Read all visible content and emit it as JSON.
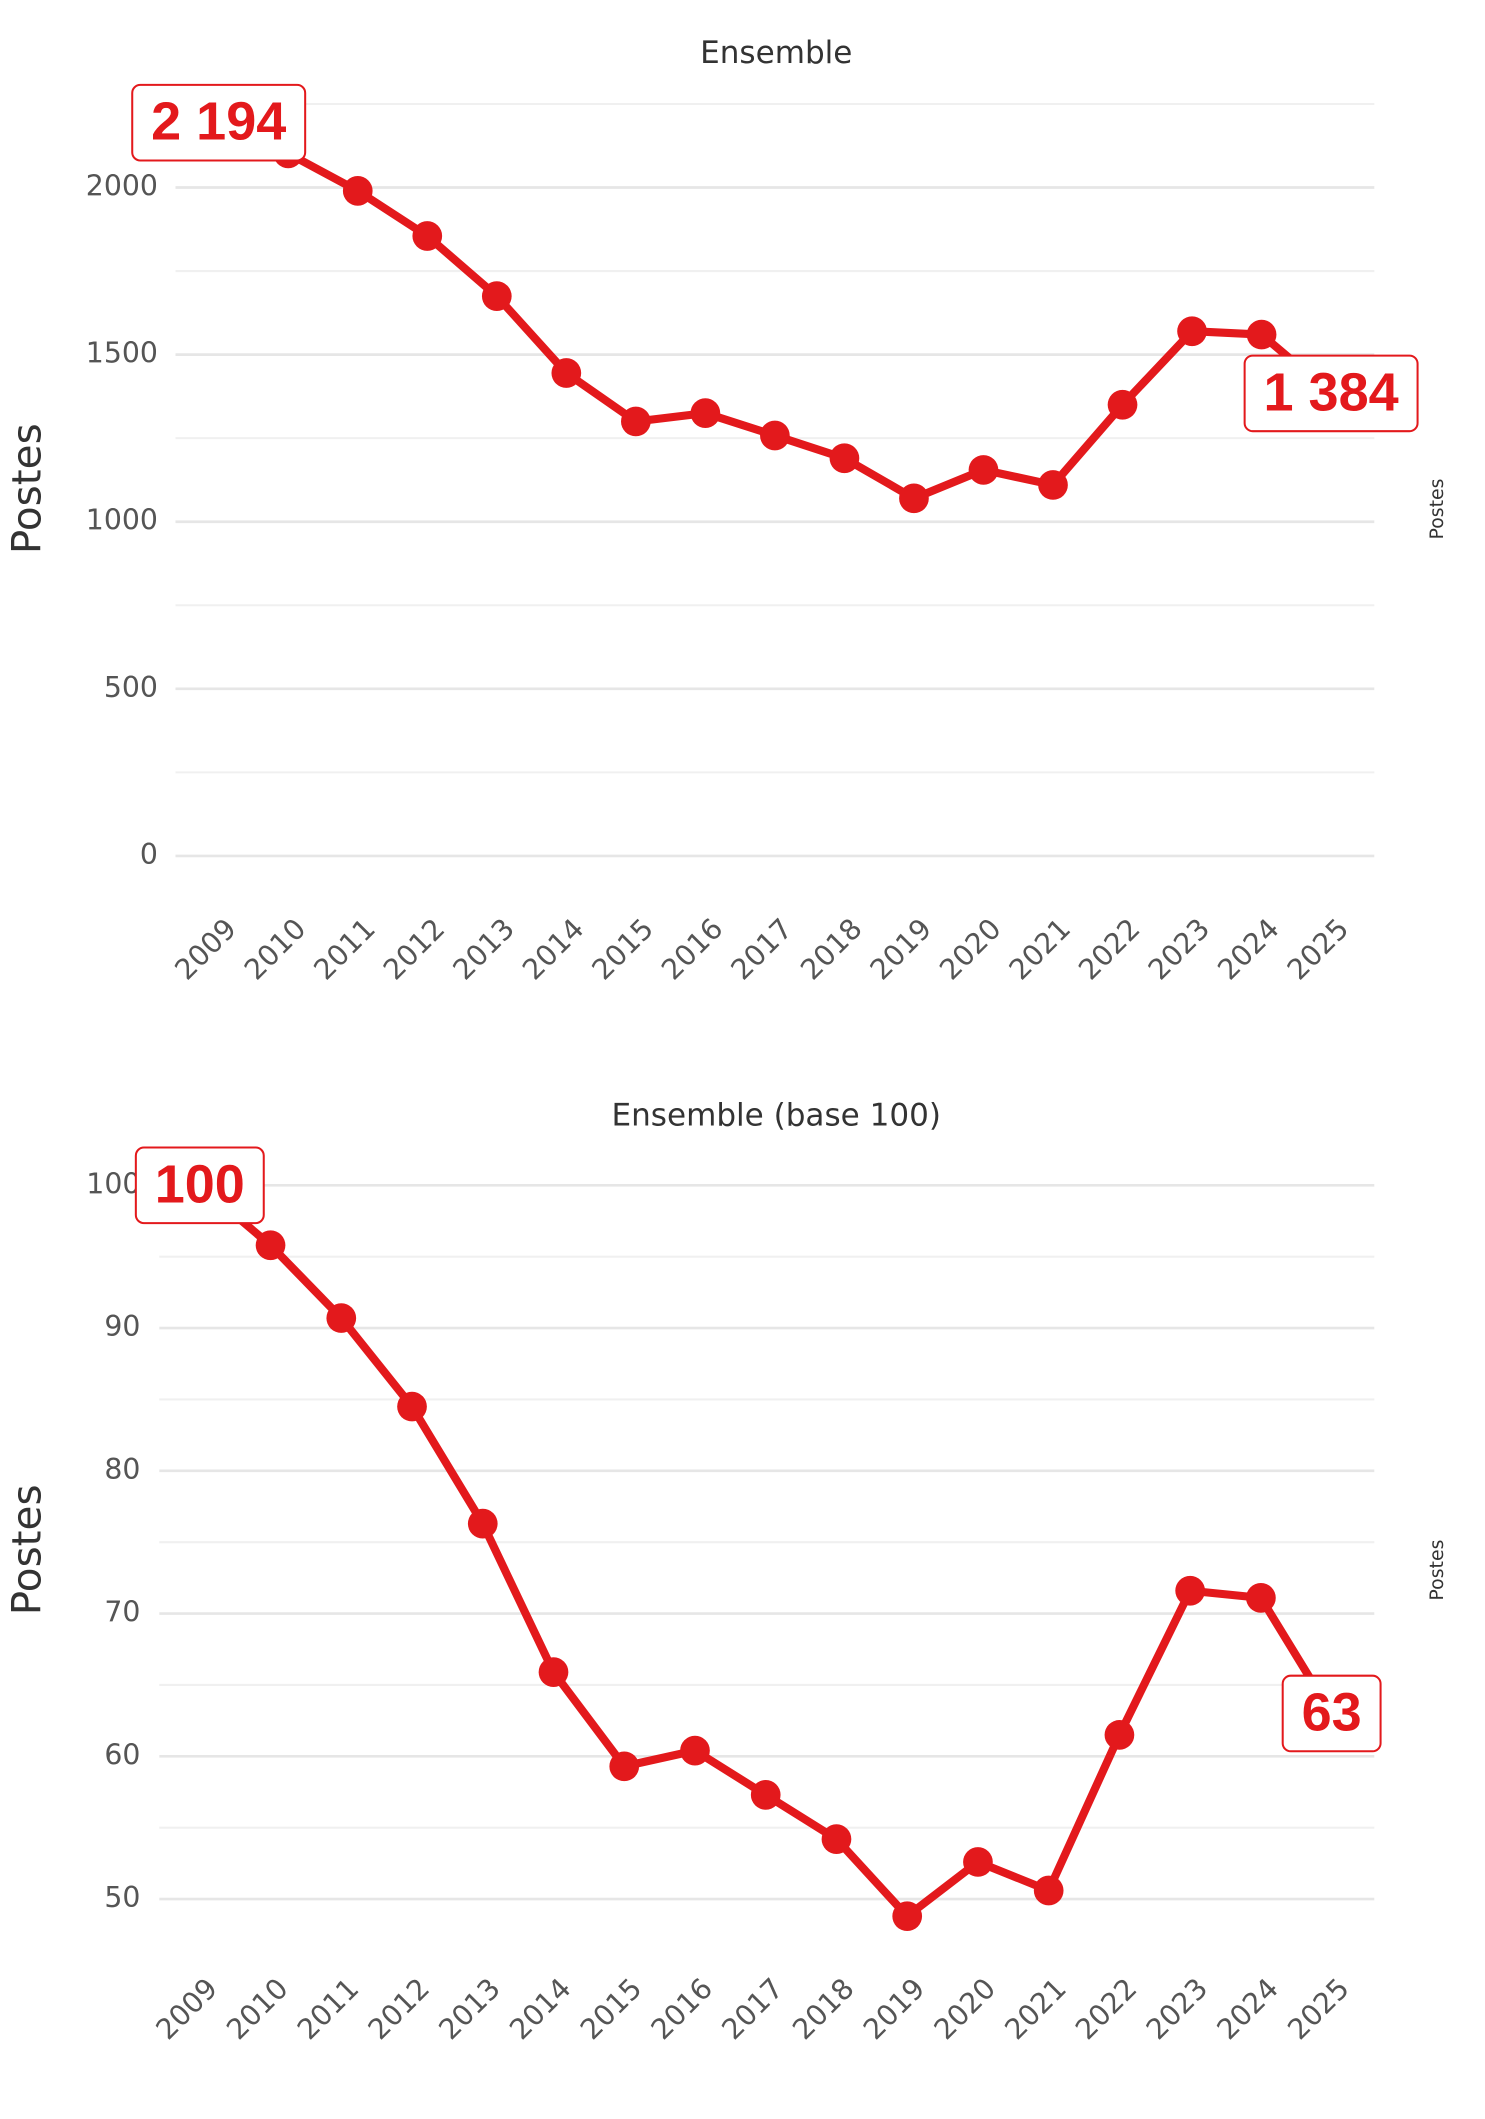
{
  "chart_data": [
    {
      "type": "line",
      "title": "Ensemble",
      "y_label": "Postes",
      "right_label": "Postes",
      "categories": [
        "2009",
        "2010",
        "2011",
        "2012",
        "2013",
        "2014",
        "2015",
        "2016",
        "2017",
        "2018",
        "2019",
        "2020",
        "2021",
        "2022",
        "2023",
        "2024",
        "2025"
      ],
      "series": [
        {
          "name": "Ensemble",
          "color": "#e3191c",
          "values": [
            2194,
            2102,
            1990,
            1855,
            1675,
            1445,
            1300,
            1325,
            1258,
            1190,
            1070,
            1155,
            1110,
            1350,
            1570,
            1560,
            1384
          ],
          "value_labels": [
            "2 194",
            null,
            null,
            null,
            null,
            null,
            null,
            null,
            null,
            null,
            null,
            null,
            null,
            null,
            null,
            null,
            "1 384"
          ]
        }
      ],
      "ylim": [
        0,
        2250
      ],
      "yticks": [
        0,
        500,
        1000,
        1500,
        2000
      ],
      "minor_yticks": [
        250,
        750,
        1250,
        1750,
        2250
      ],
      "grid": true
    },
    {
      "type": "line",
      "title": "Ensemble (base 100)",
      "y_label": "Postes",
      "right_label": "Postes",
      "categories": [
        "2009",
        "2010",
        "2011",
        "2012",
        "2013",
        "2014",
        "2015",
        "2016",
        "2017",
        "2018",
        "2019",
        "2020",
        "2021",
        "2022",
        "2023",
        "2024",
        "2025"
      ],
      "series": [
        {
          "name": "Ensemble (base 100)",
          "color": "#e3191c",
          "values": [
            100,
            95.8,
            90.7,
            84.5,
            76.3,
            65.9,
            59.3,
            60.4,
            57.3,
            54.2,
            48.8,
            52.6,
            50.6,
            61.5,
            71.6,
            71.1,
            63
          ],
          "value_labels": [
            "100",
            null,
            null,
            null,
            null,
            null,
            null,
            null,
            null,
            null,
            null,
            null,
            null,
            null,
            null,
            null,
            "63"
          ]
        }
      ],
      "ylim": [
        46,
        100
      ],
      "yticks": [
        50,
        60,
        70,
        80,
        90,
        100
      ],
      "minor_yticks": [
        55,
        65,
        75,
        85,
        95
      ],
      "grid": true
    }
  ]
}
